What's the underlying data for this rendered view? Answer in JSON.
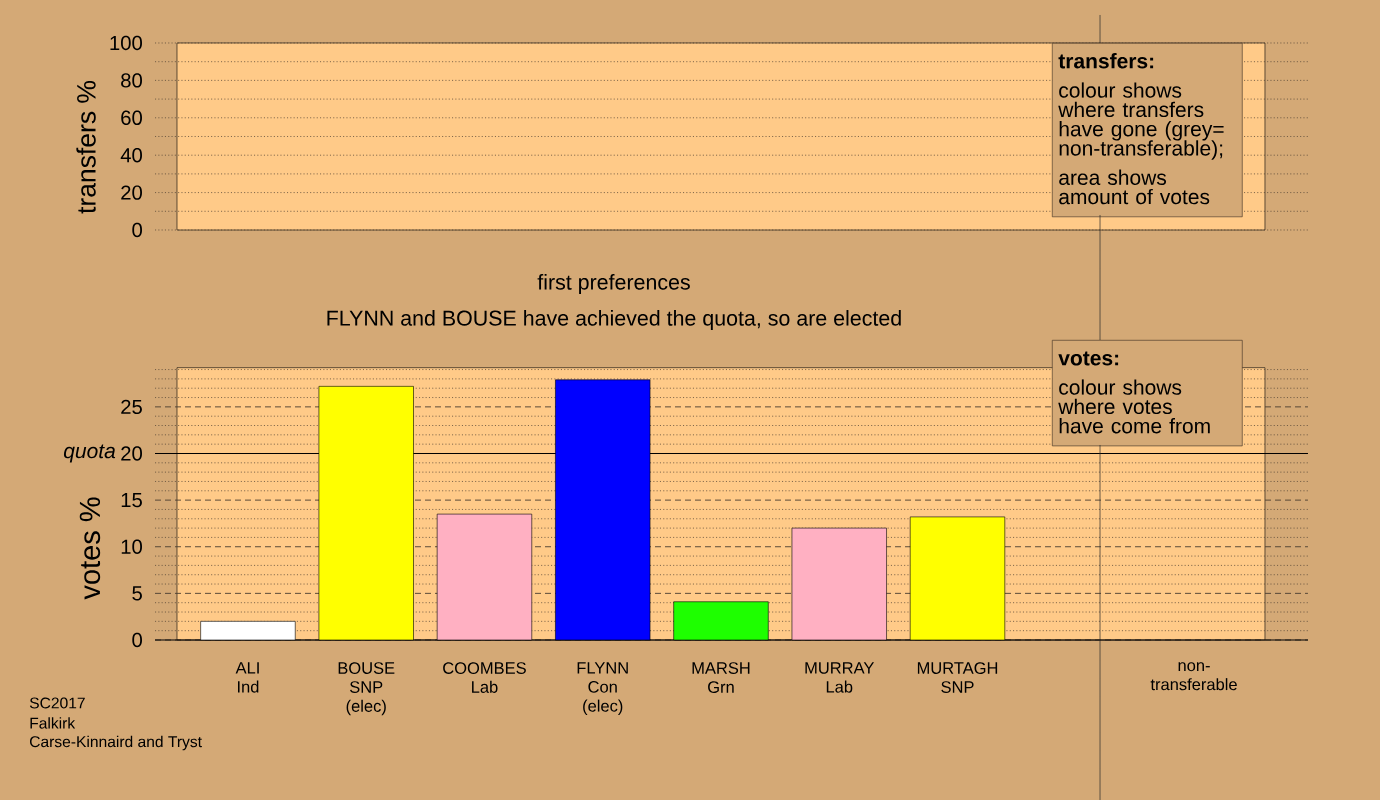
{
  "chart_data": [
    {
      "type": "bar",
      "ylabel": "transfers %",
      "categories": [
        null,
        null,
        null,
        null,
        null,
        null,
        null,
        null,
        null
      ],
      "values": [
        null,
        null,
        null,
        null,
        null,
        null,
        null,
        null,
        null
      ],
      "ylim": [
        0,
        100
      ],
      "yticks": [
        0,
        {
          "value": 10,
          "label": null
        },
        20,
        {
          "value": 30,
          "label": null
        },
        40,
        {
          "value": 50,
          "label": null
        },
        60,
        {
          "value": 70,
          "label": null
        },
        80,
        {
          "value": 90,
          "label": null
        },
        100
      ],
      "grid": "y",
      "annotations": [
        "transfers:",
        "colour shows where transfers have gone (grey= non-transferable);",
        "area shows amount of votes"
      ]
    },
    {
      "type": "bar",
      "title": "first preferences",
      "subtitle": "FLYNN and BOUSE have achieved the quota, so are elected",
      "ylabel": "votes %",
      "categories": [
        "ALI Ind",
        "BOUSE SNP (elec)",
        "COOMBES Lab",
        "FLYNN Con (elec)",
        "MARSH Grn",
        "MURRAY Lab",
        "MURTAGH SNP",
        null,
        "non-transferable"
      ],
      "values": [
        2.0,
        27.2,
        13.5,
        27.9,
        4.1,
        12.0,
        13.2,
        null,
        null
      ],
      "colors": [
        "#ffffff",
        "#ffff00",
        "#ffb0c2",
        "#0000ff",
        "#1eff00",
        "#ffb0c2",
        "#ffff00",
        null,
        null
      ],
      "ylim": [
        0,
        29.2
      ],
      "yticks": [
        0,
        {
          "value": 1,
          "label": null
        },
        {
          "value": 2,
          "label": null
        },
        {
          "value": 3,
          "label": null
        },
        {
          "value": 4,
          "label": null
        },
        5,
        {
          "value": 6,
          "label": null
        },
        {
          "value": 7,
          "label": null
        },
        {
          "value": 8,
          "label": null
        },
        {
          "value": 9,
          "label": null
        },
        10,
        {
          "value": 11,
          "label": null
        },
        {
          "value": 12,
          "label": null
        },
        {
          "value": 13,
          "label": null
        },
        {
          "value": 14,
          "label": null
        },
        15,
        {
          "value": 16,
          "label": null
        },
        {
          "value": 17,
          "label": null
        },
        {
          "value": 18,
          "label": null
        },
        {
          "value": 19,
          "label": null
        },
        20,
        {
          "value": 21,
          "label": null
        },
        {
          "value": 22,
          "label": null
        },
        {
          "value": 23,
          "label": null
        },
        {
          "value": 24,
          "label": null
        },
        25,
        {
          "value": 26,
          "label": null
        },
        {
          "value": 27,
          "label": null
        },
        {
          "value": 28,
          "label": null
        },
        {
          "value": 29,
          "label": null
        }
      ],
      "grid": "y",
      "ref_lines": [
        {
          "axis": "y",
          "value": 20,
          "label": "quota",
          "color": "#000000"
        }
      ],
      "annotations": [
        "votes:",
        "colour shows where votes have come from",
        "SC2017",
        "Falkirk",
        "Carse-Kinnaird and Tryst"
      ]
    }
  ]
}
